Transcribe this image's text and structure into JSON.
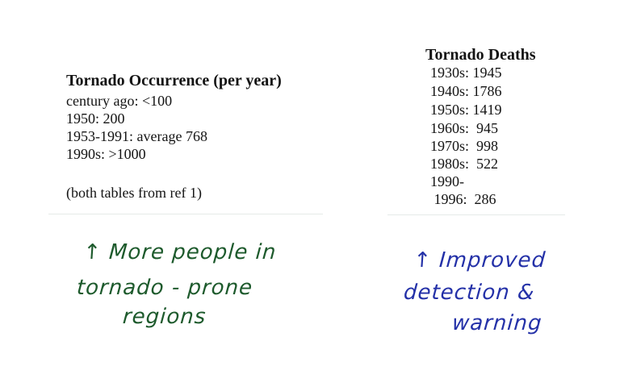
{
  "occurrence": {
    "title": "Tornado Occurrence (per year)",
    "lines": [
      "century ago: <100",
      "1950: 200",
      "1953-1991: average 768",
      "1990s: >1000"
    ],
    "note": "(both tables from ref 1)"
  },
  "deaths": {
    "title": "Tornado Deaths",
    "lines": [
      "1930s: 1945",
      "1940s: 1786",
      "1950s: 1419",
      "1960s:  945",
      "1970s:  998",
      "1980s:  522",
      "1990-",
      " 1996:  286"
    ]
  },
  "annotations": {
    "left": {
      "color": "#1d5a2c",
      "lines": [
        "↑ More people in",
        "tornado - prone",
        "regions"
      ]
    },
    "right": {
      "color": "#2431a8",
      "lines": [
        "↑ Improved",
        "detection &",
        "warning"
      ]
    }
  }
}
